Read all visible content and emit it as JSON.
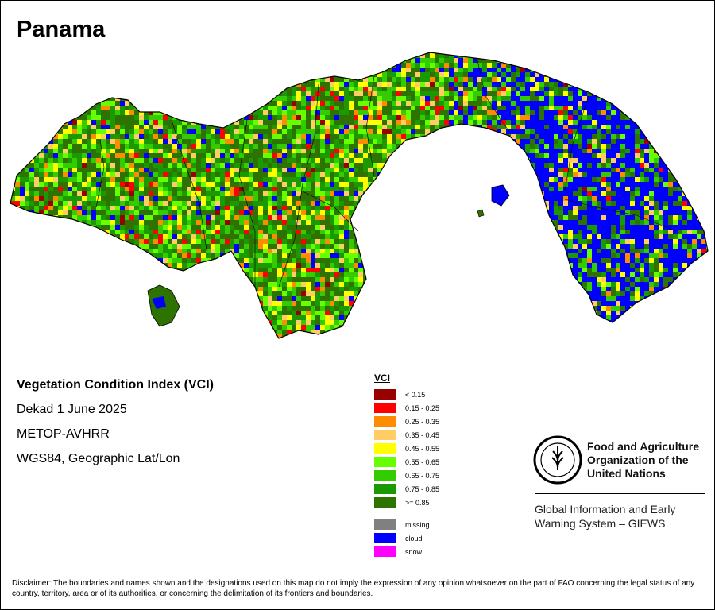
{
  "title": "Panama",
  "info": {
    "product": "Vegetation Condition Index (VCI)",
    "period": "Dekad 1 June 2025",
    "sensor": "METOP-AVHRR",
    "projection": "WGS84, Geographic Lat/Lon"
  },
  "legend": {
    "title": "VCI",
    "classes": [
      {
        "label": "< 0.15",
        "color": "#990000"
      },
      {
        "label": "0.15 - 0.25",
        "color": "#ff0000"
      },
      {
        "label": "0.25 - 0.35",
        "color": "#ff8c00"
      },
      {
        "label": "0.35 - 0.45",
        "color": "#ffcc66"
      },
      {
        "label": "0.45 - 0.55",
        "color": "#ffff00"
      },
      {
        "label": "0.55 - 0.65",
        "color": "#66ff00"
      },
      {
        "label": "0.65 - 0.75",
        "color": "#33cc00"
      },
      {
        "label": "0.75 - 0.85",
        "color": "#1a9900"
      },
      {
        "label": ">= 0.85",
        "color": "#2e7300"
      }
    ],
    "special": [
      {
        "label": "missing",
        "color": "#808080"
      },
      {
        "label": "cloud",
        "color": "#0000ff"
      },
      {
        "label": "snow",
        "color": "#ff00ff"
      }
    ]
  },
  "map": {
    "base_color": "#2e7300",
    "outline_color": "#000000"
  },
  "organization": {
    "logo_icon": "fao-logo-icon",
    "name_lines": [
      "Food and Agriculture",
      "Organization of the",
      "United Nations"
    ],
    "system_lines": [
      "Global Information and Early",
      "Warning System – GIEWS"
    ]
  },
  "disclaimer": "Disclaimer: The boundaries and names shown and the designations used on this map do not imply the expression of any opinion whatsoever on the part of FAO concerning the legal status of any country, territory, area or of its authorities, or concerning the delimitation of its frontiers and boundaries."
}
